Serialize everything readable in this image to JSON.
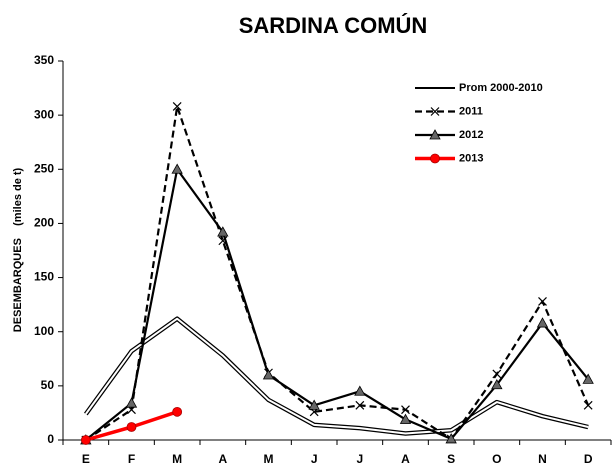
{
  "chart_data": {
    "type": "line",
    "title": "SARDINA COMÚN",
    "y_label": "DESEMBARQUES    (miles de t)",
    "categories": [
      "E",
      "F",
      "M",
      "A",
      "M",
      "J",
      "J",
      "A",
      "S",
      "O",
      "N",
      "D"
    ],
    "ylim": [
      0,
      350
    ],
    "yticks": [
      0,
      50,
      100,
      150,
      200,
      250,
      300,
      350
    ],
    "legend": "upper right",
    "series": [
      {
        "name": "Prom 2000-2010",
        "color": "#000000",
        "style": "double",
        "marker": "none",
        "values": [
          24,
          82,
          112,
          78,
          37,
          14,
          11,
          6,
          9,
          35,
          22,
          12
        ]
      },
      {
        "name": "2011",
        "color": "#000000",
        "style": "dashed",
        "marker": "x",
        "values": [
          0,
          28,
          308,
          184,
          62,
          26,
          32,
          28,
          1,
          61,
          128,
          32
        ]
      },
      {
        "name": "2012",
        "color": "#000000",
        "style": "solid",
        "marker": "triangle",
        "values": [
          0,
          34,
          250,
          192,
          60,
          32,
          45,
          19,
          1,
          51,
          108,
          56
        ]
      },
      {
        "name": "2013",
        "color": "#ff0000",
        "style": "solid",
        "marker": "circle",
        "values": [
          0,
          12,
          26,
          null,
          null,
          null,
          null,
          null,
          null,
          null,
          null,
          null
        ]
      }
    ]
  }
}
